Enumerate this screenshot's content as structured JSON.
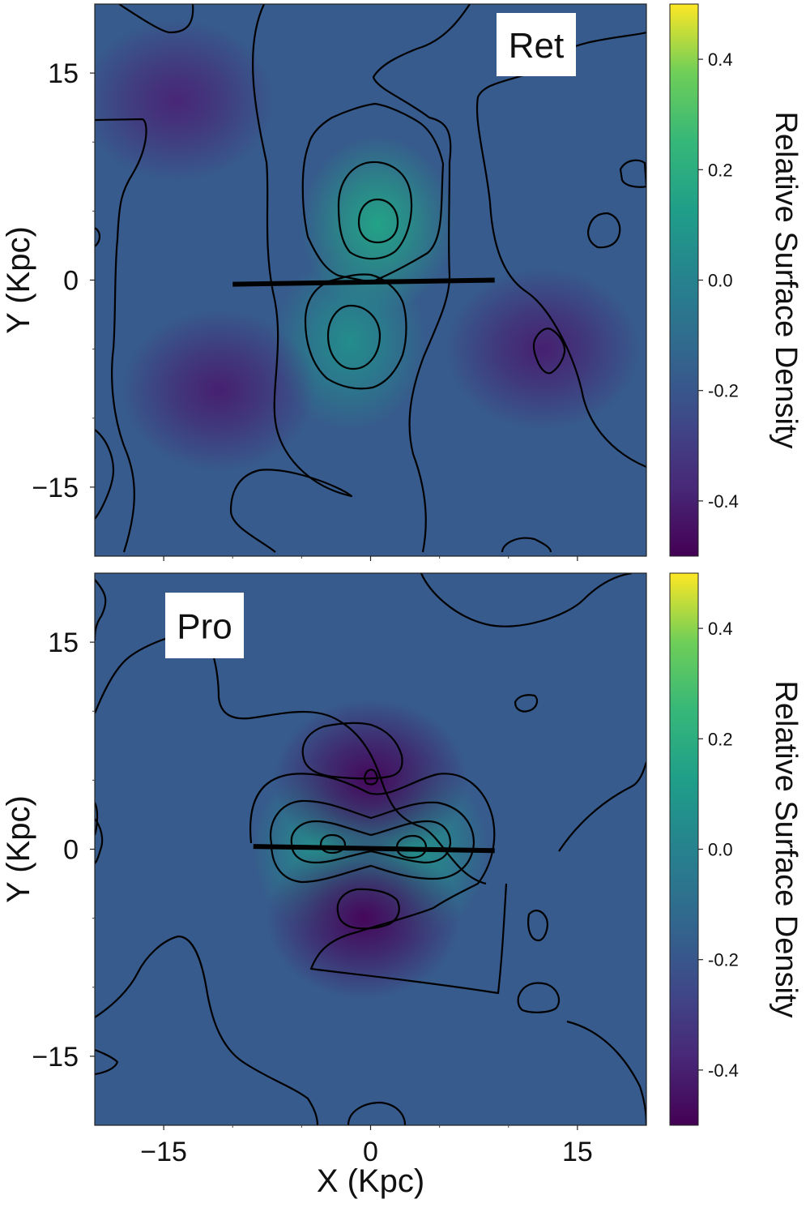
{
  "chart_data": [
    {
      "type": "heatmap",
      "panel_label": "Ret",
      "xlabel": "",
      "ylabel": "Y (Kpc)",
      "xlim": [
        -20,
        20
      ],
      "ylim": [
        -20,
        20
      ],
      "xticks": [
        -15,
        0,
        15
      ],
      "yticks": [
        15,
        0,
        -15
      ],
      "ytick_labels": [
        "15",
        "0",
        "−15"
      ],
      "colorbar": {
        "label": "Relative Surface Density",
        "range": [
          -0.5,
          0.5
        ],
        "ticks": [
          0.4,
          0.2,
          0.0,
          -0.2,
          -0.4
        ],
        "tick_labels": [
          "0.4",
          "0.2",
          "0.0",
          "-0.2",
          "-0.4"
        ],
        "colormap": "viridis"
      },
      "bar_line": {
        "x": [
          -10,
          9
        ],
        "y": [
          -0.3,
          0
        ]
      },
      "features": [
        {
          "kind": "overdensity",
          "x": 0.5,
          "y": 4,
          "peak": 0.15
        },
        {
          "kind": "overdensity",
          "x": -1.5,
          "y": -4.5,
          "peak": 0.05
        },
        {
          "kind": "underdensity",
          "x": 12.5,
          "y": -5,
          "peak": -0.4
        },
        {
          "kind": "underdensity",
          "x": -14,
          "y": 13,
          "peak": -0.38
        },
        {
          "kind": "underdensity",
          "x": -11,
          "y": -8,
          "peak": -0.4
        }
      ]
    },
    {
      "type": "heatmap",
      "panel_label": "Pro",
      "xlabel": "X (Kpc)",
      "ylabel": "Y (Kpc)",
      "xlim": [
        -20,
        20
      ],
      "ylim": [
        -20,
        20
      ],
      "xticks": [
        -15,
        0,
        15
      ],
      "xtick_labels": [
        "−15",
        "0",
        "15"
      ],
      "yticks": [
        15,
        0,
        -15
      ],
      "ytick_labels": [
        "15",
        "0",
        "−15"
      ],
      "colorbar": {
        "label": "Relative Surface Density",
        "range": [
          -0.5,
          0.5
        ],
        "ticks": [
          0.4,
          0.2,
          0.0,
          -0.2,
          -0.4
        ],
        "tick_labels": [
          "0.4",
          "0.2",
          "0.0",
          "-0.2",
          "-0.4"
        ],
        "colormap": "viridis"
      },
      "bar_line": {
        "x": [
          -8.5,
          9
        ],
        "y": [
          0.2,
          -0.1
        ]
      },
      "features": [
        {
          "kind": "overdensity",
          "x": -3,
          "y": 0,
          "peak": 0.08
        },
        {
          "kind": "overdensity",
          "x": 3,
          "y": 0,
          "peak": 0.08
        },
        {
          "kind": "underdensity",
          "x": 0,
          "y": 5,
          "peak": -0.48
        },
        {
          "kind": "underdensity",
          "x": -0.5,
          "y": -5,
          "peak": -0.48
        }
      ]
    }
  ]
}
